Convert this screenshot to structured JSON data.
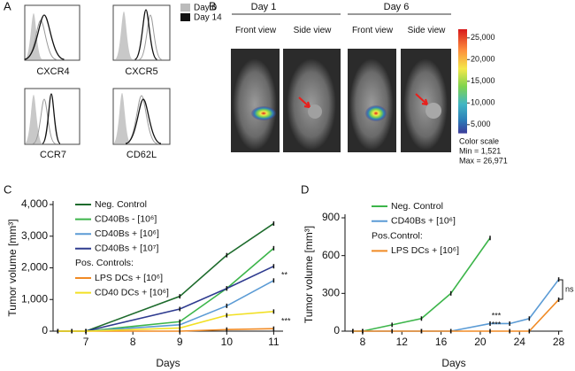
{
  "panel_labels": [
    "A",
    "B",
    "C",
    "D"
  ],
  "panel_a": {
    "legend": [
      "Day 0",
      "Day 14"
    ],
    "markers": [
      "CXCR4",
      "CXCR5",
      "CCR7",
      "CD62L"
    ]
  },
  "panel_b": {
    "days": [
      "Day 1",
      "Day 6"
    ],
    "views": [
      "Front view",
      "Side view",
      "Front view",
      "Side view"
    ],
    "colorbar": {
      "range": [
        3000,
        27000
      ],
      "ticks": [
        {
          "value": 25000,
          "label": "25,000"
        },
        {
          "value": 20000,
          "label": "20,000"
        },
        {
          "value": 15000,
          "label": "15,000"
        },
        {
          "value": 10000,
          "label": "10,000"
        },
        {
          "value": 5000,
          "label": "5,000"
        }
      ],
      "caption": [
        "Color scale",
        "Min = 1,521",
        "Max = 26,971"
      ]
    }
  },
  "chart_data": [
    {
      "type": "line",
      "xlabel": "Days",
      "ylabel": "Tumor volume [mm³]",
      "x": [
        6.4,
        6.7,
        7,
        9,
        10,
        11
      ],
      "xlim": [
        6.3,
        11.2
      ],
      "xticks": [
        7,
        8,
        9,
        10,
        11
      ],
      "ylim": [
        0,
        4000
      ],
      "yticks": [
        0,
        {
          "value": 1000,
          "label": "1,000"
        },
        {
          "value": 2000,
          "label": "2,000"
        },
        {
          "value": 3000,
          "label": "3,000"
        },
        {
          "value": 4000,
          "label": "4,000"
        }
      ],
      "legend_heading": "Pos. Controls:",
      "series": [
        {
          "name": "Neg. Control",
          "color": "#1d6b2c",
          "values": [
            0,
            0,
            0,
            1100,
            2400,
            3400
          ]
        },
        {
          "name": "CD40Bs -  [10⁶]",
          "color": "#3cb54a",
          "values": [
            0,
            0,
            0,
            300,
            1350,
            2620
          ]
        },
        {
          "name": "CD40Bs + [10⁶]",
          "color": "#5b9bd5",
          "values": [
            0,
            0,
            0,
            200,
            800,
            1600
          ]
        },
        {
          "name": "CD40Bs + [10⁷]",
          "color": "#2e3b8f",
          "values": [
            0,
            0,
            0,
            700,
            1350,
            2050
          ]
        },
        {
          "name": "LPS DCs + [10⁶]",
          "color": "#f08a24",
          "values": [
            0,
            0,
            0,
            0,
            50,
            80
          ]
        },
        {
          "name": "CD40 DCs + [10⁶]",
          "color": "#f2e024",
          "values": [
            0,
            0,
            0,
            100,
            500,
            620
          ]
        }
      ],
      "annotations": [
        "**",
        "***"
      ]
    },
    {
      "type": "line",
      "xlabel": "Days",
      "ylabel": "Tumor volume [mm³]",
      "x": [
        7,
        8,
        11,
        14,
        17,
        21,
        23,
        25,
        28
      ],
      "xlim": [
        6.2,
        28.4
      ],
      "xticks": [
        8,
        12,
        16,
        20,
        24,
        28
      ],
      "ylim": [
        0,
        900
      ],
      "yticks": [
        0,
        300,
        600,
        900
      ],
      "legend_heading": "Pos.Control:",
      "series": [
        {
          "name": "Neg. Control",
          "color": "#3cb54a",
          "values": [
            0,
            0,
            50,
            100,
            300,
            740,
            null,
            null,
            null
          ]
        },
        {
          "name": "CD40Bs + [10⁶]",
          "color": "#5b9bd5",
          "values": [
            0,
            0,
            0,
            0,
            0,
            60,
            60,
            100,
            410
          ]
        },
        {
          "name": "LPS DCs + [10⁶]",
          "color": "#f08a24",
          "values": [
            0,
            0,
            0,
            0,
            0,
            0,
            0,
            0,
            250
          ]
        }
      ],
      "annotations": [
        "***",
        "***",
        "ns"
      ]
    }
  ]
}
